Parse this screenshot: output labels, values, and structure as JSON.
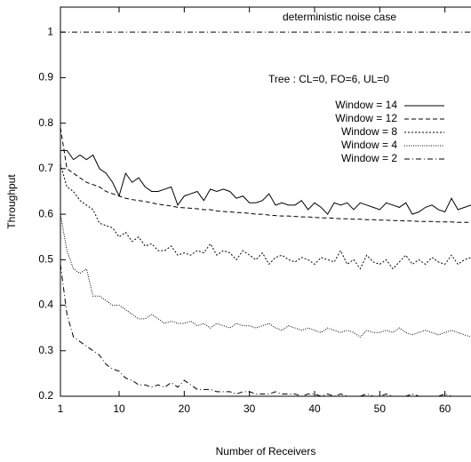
{
  "chart_data": {
    "type": "line",
    "x_label": "Number of Receivers",
    "y_label": "Throughput",
    "annotations": [
      "Tree : CL=0, FO=6, UL=0"
    ],
    "reference": {
      "label": "deterministic noise case",
      "value": 1,
      "style": "dashdot"
    },
    "xlim": [
      1,
      64
    ],
    "ylim": [
      0.2,
      1.055
    ],
    "xticks": [
      1,
      10,
      20,
      30,
      40,
      50,
      60
    ],
    "yticks": [
      0.2,
      0.3,
      0.4,
      0.5,
      0.6,
      0.7,
      0.8,
      0.9,
      1
    ],
    "legend": "upper right",
    "x": [
      1,
      2,
      3,
      4,
      5,
      6,
      7,
      8,
      9,
      10,
      11,
      12,
      13,
      14,
      15,
      16,
      17,
      18,
      19,
      20,
      21,
      22,
      23,
      24,
      25,
      26,
      27,
      28,
      29,
      30,
      31,
      32,
      33,
      34,
      35,
      36,
      37,
      38,
      39,
      40,
      41,
      42,
      43,
      44,
      45,
      46,
      47,
      48,
      49,
      50,
      51,
      52,
      53,
      54,
      55,
      56,
      57,
      58,
      59,
      60,
      61,
      62,
      63,
      64
    ],
    "series": [
      {
        "name": "Window = 14",
        "color": "#000000",
        "style": "solid",
        "values": [
          0.74,
          0.74,
          0.72,
          0.73,
          0.72,
          0.73,
          0.7,
          0.69,
          0.67,
          0.64,
          0.69,
          0.67,
          0.68,
          0.66,
          0.65,
          0.65,
          0.655,
          0.66,
          0.62,
          0.64,
          0.645,
          0.65,
          0.63,
          0.655,
          0.65,
          0.655,
          0.65,
          0.635,
          0.64,
          0.625,
          0.625,
          0.63,
          0.645,
          0.62,
          0.625,
          0.62,
          0.62,
          0.63,
          0.61,
          0.625,
          0.615,
          0.6,
          0.625,
          0.62,
          0.625,
          0.61,
          0.625,
          0.62,
          0.615,
          0.61,
          0.625,
          0.62,
          0.615,
          0.625,
          0.6,
          0.605,
          0.615,
          0.62,
          0.61,
          0.605,
          0.635,
          0.61,
          0.615,
          0.62
        ]
      },
      {
        "name": "Window = 12",
        "color": "#000000",
        "style": "dashed",
        "values": [
          0.79,
          0.7,
          0.69,
          0.68,
          0.67,
          0.665,
          0.66,
          0.65,
          0.645,
          0.64,
          0.635,
          0.632,
          0.63,
          0.628,
          0.625,
          0.622,
          0.62,
          0.618,
          0.615,
          0.614,
          0.613,
          0.612,
          0.61,
          0.61,
          0.607,
          0.606,
          0.605,
          0.604,
          0.603,
          0.602,
          0.6,
          0.6,
          0.598,
          0.597,
          0.596,
          0.596,
          0.595,
          0.594,
          0.594,
          0.593,
          0.592,
          0.592,
          0.591,
          0.59,
          0.59,
          0.589,
          0.589,
          0.588,
          0.588,
          0.587,
          0.587,
          0.586,
          0.586,
          0.585,
          0.585,
          0.584,
          0.584,
          0.584,
          0.583,
          0.583,
          0.583,
          0.582,
          0.582,
          0.582
        ]
      },
      {
        "name": "Window = 8",
        "color": "#000000",
        "style": "dotted",
        "values": [
          0.71,
          0.66,
          0.65,
          0.63,
          0.62,
          0.61,
          0.58,
          0.575,
          0.57,
          0.55,
          0.56,
          0.54,
          0.55,
          0.53,
          0.535,
          0.52,
          0.52,
          0.53,
          0.51,
          0.515,
          0.51,
          0.52,
          0.515,
          0.535,
          0.51,
          0.52,
          0.515,
          0.5,
          0.52,
          0.51,
          0.5,
          0.515,
          0.49,
          0.505,
          0.51,
          0.5,
          0.495,
          0.505,
          0.5,
          0.49,
          0.505,
          0.5,
          0.495,
          0.52,
          0.49,
          0.5,
          0.48,
          0.51,
          0.495,
          0.49,
          0.5,
          0.48,
          0.495,
          0.51,
          0.49,
          0.5,
          0.49,
          0.505,
          0.495,
          0.49,
          0.51,
          0.49,
          0.5,
          0.505
        ]
      },
      {
        "name": "Window = 4",
        "color": "#000000",
        "style": "finedotted",
        "values": [
          0.6,
          0.52,
          0.48,
          0.47,
          0.48,
          0.42,
          0.42,
          0.41,
          0.4,
          0.4,
          0.39,
          0.38,
          0.37,
          0.37,
          0.38,
          0.37,
          0.36,
          0.365,
          0.36,
          0.36,
          0.365,
          0.355,
          0.36,
          0.35,
          0.36,
          0.355,
          0.35,
          0.36,
          0.355,
          0.355,
          0.35,
          0.355,
          0.36,
          0.35,
          0.345,
          0.355,
          0.35,
          0.345,
          0.35,
          0.345,
          0.34,
          0.35,
          0.345,
          0.34,
          0.345,
          0.34,
          0.33,
          0.345,
          0.34,
          0.34,
          0.345,
          0.34,
          0.35,
          0.34,
          0.335,
          0.34,
          0.345,
          0.34,
          0.335,
          0.34,
          0.345,
          0.34,
          0.335,
          0.33
        ]
      },
      {
        "name": "Window = 2",
        "color": "#000000",
        "style": "dashdot",
        "values": [
          0.49,
          0.38,
          0.33,
          0.32,
          0.31,
          0.3,
          0.29,
          0.27,
          0.26,
          0.255,
          0.24,
          0.235,
          0.225,
          0.225,
          0.22,
          0.225,
          0.22,
          0.23,
          0.22,
          0.235,
          0.225,
          0.215,
          0.215,
          0.215,
          0.21,
          0.21,
          0.21,
          0.205,
          0.21,
          0.21,
          0.205,
          0.205,
          0.205,
          0.21,
          0.205,
          0.205,
          0.205,
          0.2,
          0.205,
          0.205,
          0.2,
          0.205,
          0.2,
          0.205,
          0.2,
          0.2,
          0.2,
          0.205,
          0.2,
          0.2,
          0.205,
          0.2,
          0.2,
          0.2,
          0.205,
          0.2,
          0.2,
          0.2,
          0.2,
          0.205,
          0.2,
          0.2,
          0.2,
          0.2
        ]
      }
    ]
  }
}
